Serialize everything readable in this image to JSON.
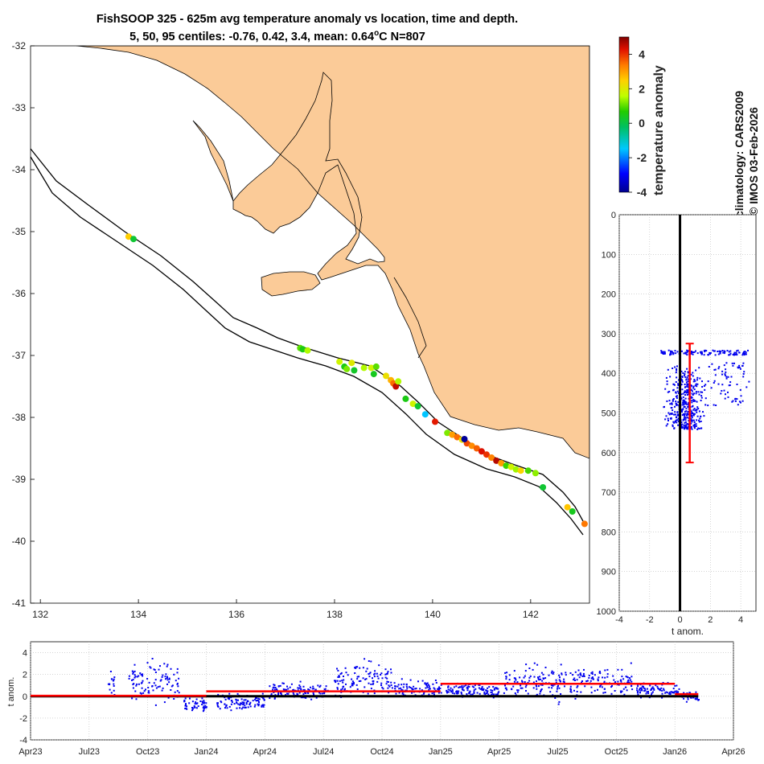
{
  "title": {
    "line1": "FishSOOP 325 - 625m avg temperature anomaly vs location, time and depth.",
    "line2_prefix": "5, 50, 95 centiles: -0.76, 0.42, 3.4, mean: 0.64",
    "line2_degree": "o",
    "line2_suffix": "C N=807"
  },
  "side_text": {
    "climatology": "climatology: CARS2009",
    "credit": "© IMOS 03-Feb-2026"
  },
  "colors": {
    "land": "#fbcb98",
    "coast": "#000000",
    "depth_points": "#0000ee",
    "mean_line": "#ff0000",
    "zero_line": "#000000"
  },
  "chart_data": [
    {
      "id": "map",
      "type": "scatter",
      "title": "temperature anomaly vs location",
      "xlabel": "",
      "ylabel": "",
      "xlim": [
        131.8,
        143.2
      ],
      "ylim": [
        -41,
        -32
      ],
      "xticks": [
        132,
        134,
        136,
        138,
        140,
        142
      ],
      "yticks": [
        -32,
        -33,
        -34,
        -35,
        -36,
        -37,
        -38,
        -39,
        -40,
        -41
      ],
      "colorbar": {
        "label": "temperature anomaly",
        "range": [
          -4,
          5
        ],
        "ticks": [
          4,
          2,
          0,
          -2,
          -4
        ]
      },
      "points": [
        {
          "lon": 133.8,
          "lat": -35.08,
          "t": 2.5
        },
        {
          "lon": 133.9,
          "lat": -35.12,
          "t": 0.2
        },
        {
          "lon": 137.3,
          "lat": -36.88,
          "t": 1.0
        },
        {
          "lon": 137.35,
          "lat": -36.9,
          "t": 0.5
        },
        {
          "lon": 137.45,
          "lat": -36.92,
          "t": 1.5
        },
        {
          "lon": 138.1,
          "lat": -37.1,
          "t": 1.8
        },
        {
          "lon": 138.2,
          "lat": -37.18,
          "t": 0.5
        },
        {
          "lon": 138.25,
          "lat": -37.22,
          "t": 1.2
        },
        {
          "lon": 138.35,
          "lat": -37.12,
          "t": 2.0
        },
        {
          "lon": 138.4,
          "lat": -37.24,
          "t": 0.3
        },
        {
          "lon": 138.6,
          "lat": -37.2,
          "t": 1.5
        },
        {
          "lon": 138.75,
          "lat": -37.2,
          "t": 1.8
        },
        {
          "lon": 138.85,
          "lat": -37.18,
          "t": 1.0
        },
        {
          "lon": 138.8,
          "lat": -37.3,
          "t": 0.4
        },
        {
          "lon": 139.05,
          "lat": -37.33,
          "t": 2.2
        },
        {
          "lon": 139.15,
          "lat": -37.4,
          "t": 2.8
        },
        {
          "lon": 139.2,
          "lat": -37.45,
          "t": 3.5
        },
        {
          "lon": 139.25,
          "lat": -37.5,
          "t": 4.5
        },
        {
          "lon": 139.3,
          "lat": -37.42,
          "t": 1.5
        },
        {
          "lon": 139.45,
          "lat": -37.7,
          "t": 0.5
        },
        {
          "lon": 139.6,
          "lat": -37.78,
          "t": 1.8
        },
        {
          "lon": 139.7,
          "lat": -37.82,
          "t": 0.2
        },
        {
          "lon": 139.85,
          "lat": -37.95,
          "t": -1.5
        },
        {
          "lon": 140.05,
          "lat": -38.07,
          "t": 4.2
        },
        {
          "lon": 140.3,
          "lat": -38.25,
          "t": 1.2
        },
        {
          "lon": 140.4,
          "lat": -38.28,
          "t": 3.0
        },
        {
          "lon": 140.5,
          "lat": -38.32,
          "t": 3.5
        },
        {
          "lon": 140.6,
          "lat": -38.36,
          "t": 2.2
        },
        {
          "lon": 140.7,
          "lat": -38.42,
          "t": 3.8
        },
        {
          "lon": 140.8,
          "lat": -38.46,
          "t": 3.2
        },
        {
          "lon": 140.9,
          "lat": -38.5,
          "t": 3.6
        },
        {
          "lon": 141.0,
          "lat": -38.55,
          "t": 4.3
        },
        {
          "lon": 141.1,
          "lat": -38.6,
          "t": 4.0
        },
        {
          "lon": 141.2,
          "lat": -38.65,
          "t": 3.3
        },
        {
          "lon": 141.3,
          "lat": -38.7,
          "t": 4.6
        },
        {
          "lon": 141.4,
          "lat": -38.74,
          "t": 3.0
        },
        {
          "lon": 141.5,
          "lat": -38.78,
          "t": 0.8
        },
        {
          "lon": 141.6,
          "lat": -38.8,
          "t": 1.8
        },
        {
          "lon": 141.7,
          "lat": -38.84,
          "t": 1.4
        },
        {
          "lon": 141.8,
          "lat": -38.86,
          "t": 2.4
        },
        {
          "lon": 141.95,
          "lat": -38.86,
          "t": 0.9
        },
        {
          "lon": 142.1,
          "lat": -38.9,
          "t": 1.3
        },
        {
          "lon": 142.25,
          "lat": -39.13,
          "t": 0.2
        },
        {
          "lon": 140.65,
          "lat": -38.35,
          "t": -3.9
        },
        {
          "lon": 142.75,
          "lat": -39.45,
          "t": 2.6
        },
        {
          "lon": 142.85,
          "lat": -39.52,
          "t": 0.4
        },
        {
          "lon": 143.1,
          "lat": -39.72,
          "t": 3.4
        }
      ]
    },
    {
      "id": "depth",
      "type": "scatter",
      "title": "",
      "xlabel": "t anom.",
      "ylabel": "",
      "xlim": [
        -4,
        5
      ],
      "ylim": [
        1000,
        0
      ],
      "xticks": [
        -4,
        -2,
        0,
        2,
        4
      ],
      "yticks": [
        0,
        100,
        200,
        300,
        400,
        500,
        600,
        700,
        800,
        900,
        1000
      ],
      "mean_anomaly": 0.64,
      "depth_range": [
        325,
        625
      ],
      "cluster": {
        "t_min": -1.3,
        "t_max": 4.5,
        "depth_min": 338,
        "depth_max": 540
      }
    },
    {
      "id": "time",
      "type": "scatter",
      "title": "",
      "xlabel": "",
      "ylabel": "t anom.",
      "xlim": [
        0,
        36
      ],
      "ylim": [
        -4,
        5
      ],
      "xticks": [
        0,
        3,
        6,
        9,
        12,
        15,
        18,
        21,
        24,
        27,
        30,
        33,
        36
      ],
      "xticklabels": [
        "Apr23",
        "Jul23",
        "Oct23",
        "Jan24",
        "Apr24",
        "Jul24",
        "Oct24",
        "Jan25",
        "Apr25",
        "Jul25",
        "Oct25",
        "Jan26",
        "Apr26"
      ],
      "yticks": [
        4,
        2,
        0,
        -2,
        -4
      ],
      "bursts": [
        {
          "start": 3.9,
          "end": 4.3,
          "mean": 1.5,
          "spread": 1.2
        },
        {
          "start": 5.0,
          "end": 7.6,
          "mean": 1.2,
          "spread": 1.8
        },
        {
          "start": 7.8,
          "end": 9.0,
          "mean": -0.8,
          "spread": 0.6
        },
        {
          "start": 9.5,
          "end": 12.0,
          "mean": -0.5,
          "spread": 0.8
        },
        {
          "start": 12.2,
          "end": 15.2,
          "mean": 0.5,
          "spread": 0.7
        },
        {
          "start": 15.5,
          "end": 18.5,
          "mean": 1.6,
          "spread": 1.5
        },
        {
          "start": 18.6,
          "end": 21.0,
          "mean": 0.8,
          "spread": 0.8
        },
        {
          "start": 21.2,
          "end": 24.0,
          "mean": 0.6,
          "spread": 0.6
        },
        {
          "start": 24.2,
          "end": 27.5,
          "mean": 1.3,
          "spread": 1.5
        },
        {
          "start": 27.6,
          "end": 30.8,
          "mean": 1.4,
          "spread": 1.4
        },
        {
          "start": 31.0,
          "end": 33.2,
          "mean": 0.6,
          "spread": 0.6
        },
        {
          "start": 33.3,
          "end": 34.2,
          "mean": 0.1,
          "spread": 0.5
        }
      ],
      "mean_segments": [
        {
          "start": 0.0,
          "end": 9.0,
          "value": 0.05
        },
        {
          "start": 9.0,
          "end": 21.0,
          "value": 0.45
        },
        {
          "start": 21.0,
          "end": 33.0,
          "value": 1.15
        },
        {
          "start": 33.0,
          "end": 34.2,
          "value": 0.2
        }
      ]
    }
  ]
}
